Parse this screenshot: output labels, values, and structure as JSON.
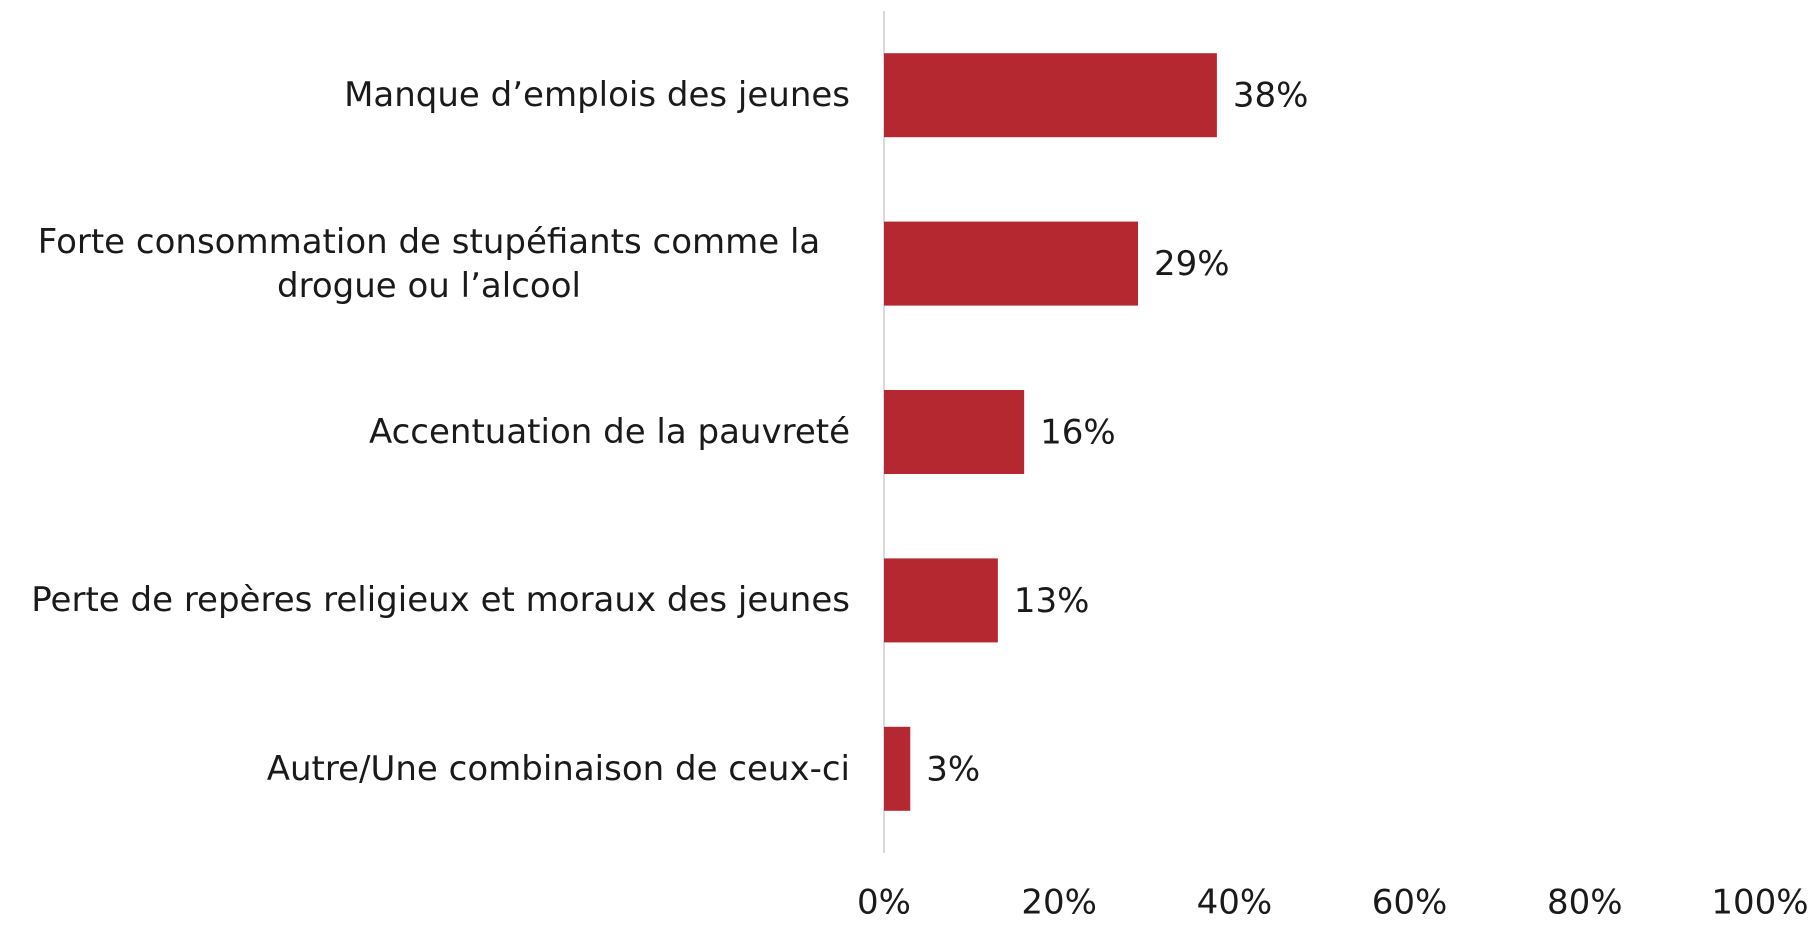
{
  "chart_data": {
    "type": "bar",
    "orientation": "horizontal",
    "categories": [
      "Manque d’emplois des jeunes",
      "Forte consommation de stupéfiants comme la drogue ou l’alcool",
      "Accentuation de la pauvreté",
      "Perte de repères religieux et moraux des jeunes",
      "Autre/Une combinaison de ceux-ci"
    ],
    "values": [
      38,
      29,
      16,
      13,
      3
    ],
    "value_labels": [
      "38%",
      "29%",
      "16%",
      "13%",
      "3%"
    ],
    "color": "#b5282f",
    "xlim": [
      0,
      100
    ],
    "xticks": [
      {
        "value": 0,
        "label": "0%"
      },
      {
        "value": 20,
        "label": "20%"
      },
      {
        "value": 40,
        "label": "40%"
      },
      {
        "value": 60,
        "label": "60%"
      },
      {
        "value": 80,
        "label": "80%"
      },
      {
        "value": 100,
        "label": "100%"
      }
    ],
    "grid": false
  }
}
